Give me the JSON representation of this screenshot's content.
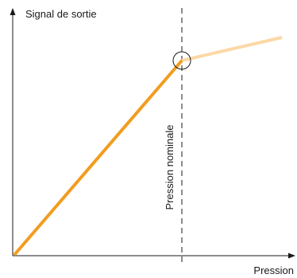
{
  "labels": {
    "y_axis": "Signal de sortie",
    "x_axis": "Pression",
    "reference_line": "Pression nominale"
  }
}
